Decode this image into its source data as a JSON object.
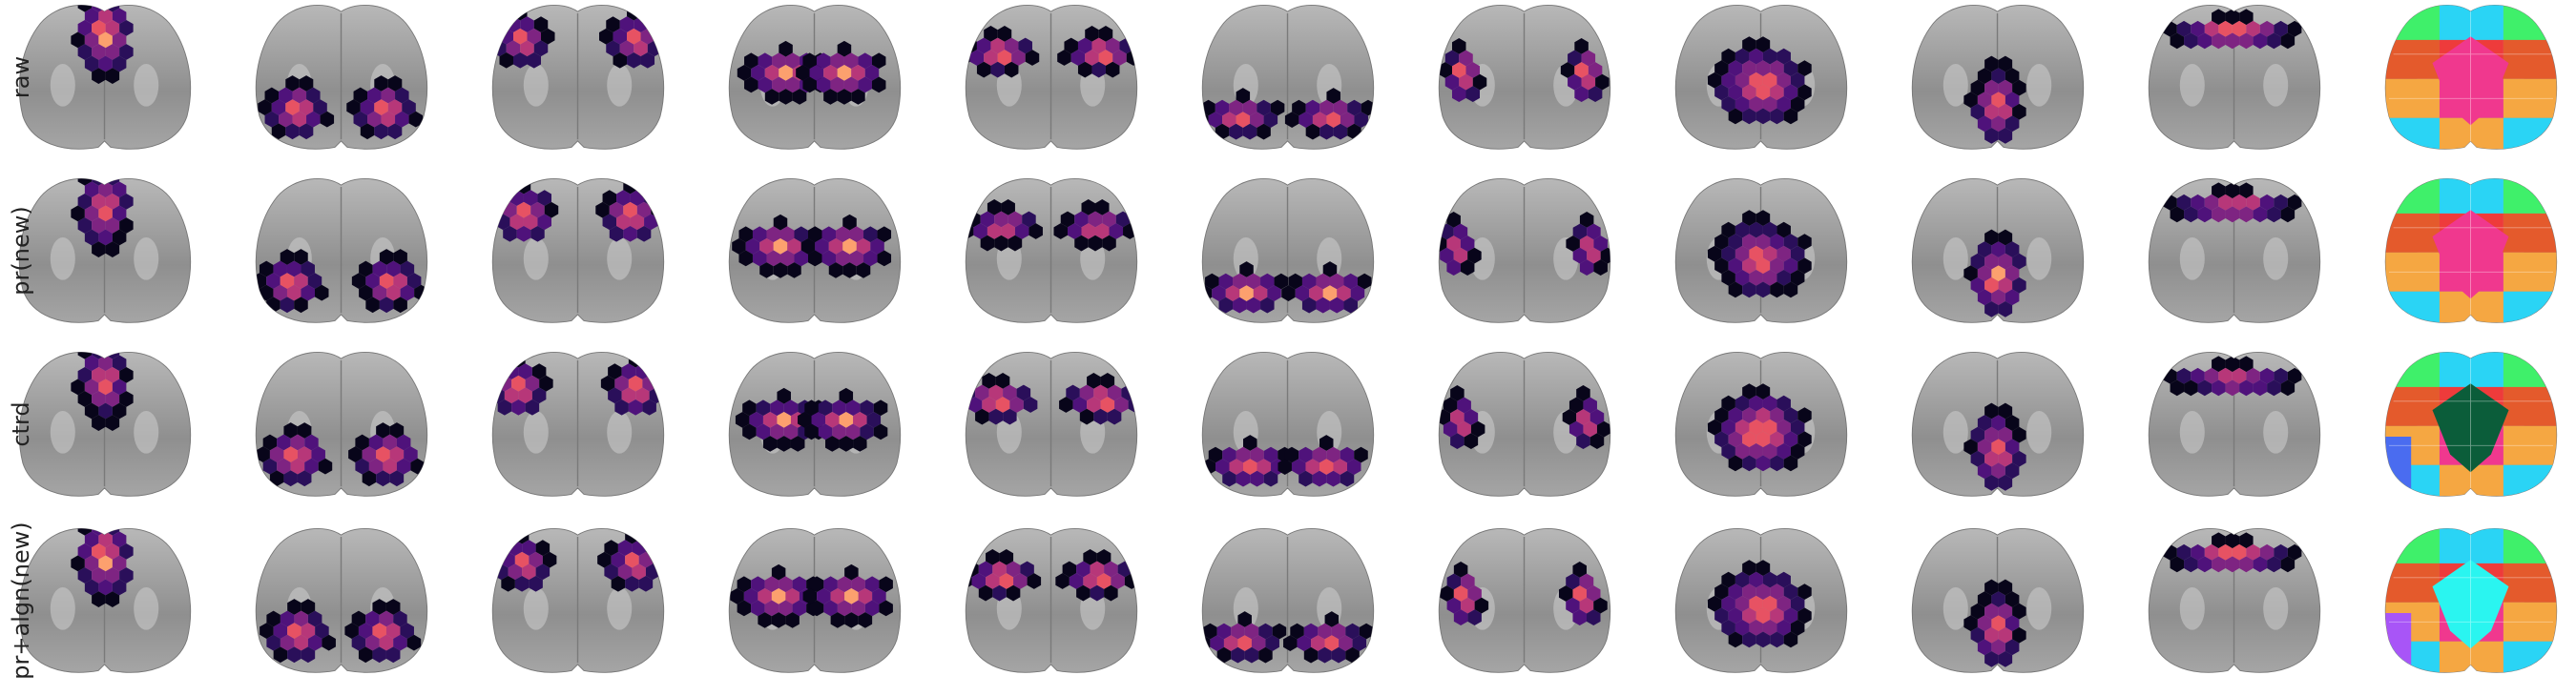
{
  "rows": [
    {
      "label": "raw"
    },
    {
      "label": "pr(new)"
    },
    {
      "label": "ctrd"
    },
    {
      "label": "pr+algn(new)"
    }
  ]
}
